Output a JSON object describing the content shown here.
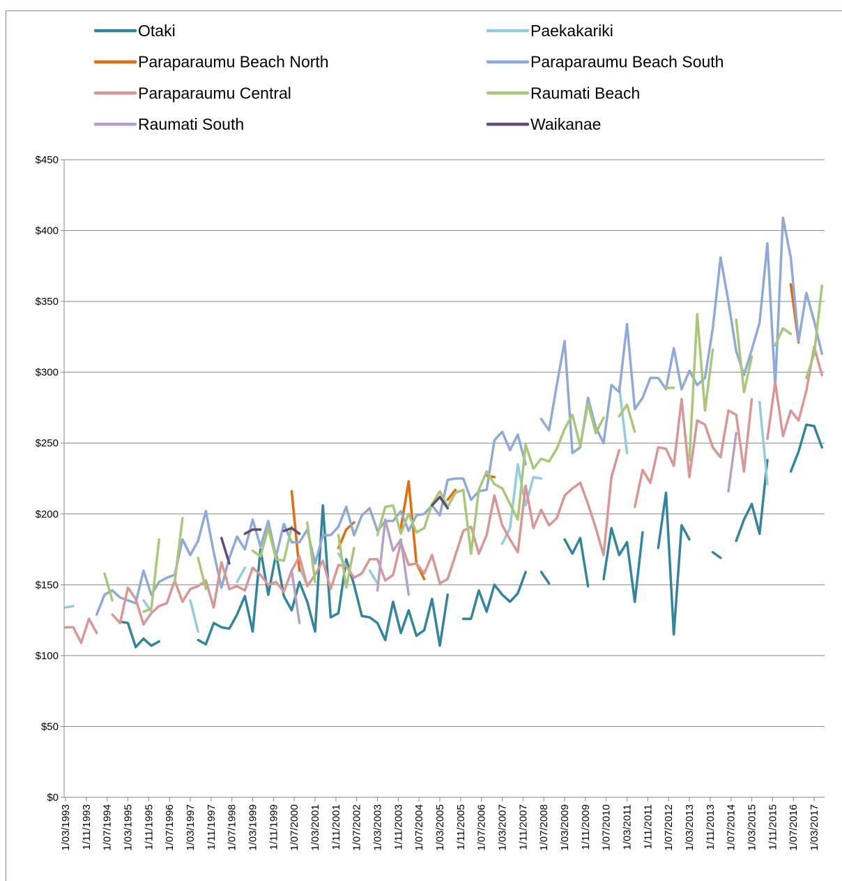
{
  "chart_data": {
    "type": "line",
    "x": [
      "1/03/1993",
      "1/06/1993",
      "1/09/1993",
      "1/12/1993",
      "1/03/1994",
      "1/06/1994",
      "1/09/1994",
      "1/12/1994",
      "1/03/1995",
      "1/06/1995",
      "1/09/1995",
      "1/12/1995",
      "1/03/1996",
      "1/06/1996",
      "1/09/1996",
      "1/12/1996",
      "1/03/1997",
      "1/06/1997",
      "1/09/1997",
      "1/12/1997",
      "1/03/1998",
      "1/06/1998",
      "1/09/1998",
      "1/12/1998",
      "1/03/1999",
      "1/06/1999",
      "1/09/1999",
      "1/12/1999",
      "1/03/2000",
      "1/06/2000",
      "1/09/2000",
      "1/12/2000",
      "1/03/2001",
      "1/06/2001",
      "1/09/2001",
      "1/12/2001",
      "1/03/2002",
      "1/06/2002",
      "1/09/2002",
      "1/12/2002",
      "1/03/2003",
      "1/06/2003",
      "1/09/2003",
      "1/12/2003",
      "1/03/2004",
      "1/06/2004",
      "1/09/2004",
      "1/12/2004",
      "1/03/2005",
      "1/06/2005",
      "1/09/2005",
      "1/12/2005",
      "1/03/2006",
      "1/06/2006",
      "1/09/2006",
      "1/12/2006",
      "1/03/2007",
      "1/06/2007",
      "1/09/2007",
      "1/12/2007",
      "1/03/2008",
      "1/06/2008",
      "1/09/2008",
      "1/12/2008",
      "1/03/2009",
      "1/06/2009",
      "1/09/2009",
      "1/12/2009",
      "1/03/2010",
      "1/06/2010",
      "1/09/2010",
      "1/12/2010",
      "1/03/2011",
      "1/06/2011",
      "1/09/2011",
      "1/12/2011",
      "1/03/2012",
      "1/06/2012",
      "1/09/2012",
      "1/12/2012",
      "1/03/2013",
      "1/06/2013",
      "1/09/2013",
      "1/12/2013",
      "1/03/2014",
      "1/06/2014",
      "1/09/2014",
      "1/12/2014",
      "1/03/2015",
      "1/06/2015",
      "1/09/2015",
      "1/12/2015",
      "1/03/2016",
      "1/06/2016",
      "1/09/2016",
      "1/12/2016",
      "1/03/2017",
      "1/06/2017"
    ],
    "xlim": [
      "1/03/1993",
      "1/07/2017"
    ],
    "xticks": [
      "1/03/1993",
      "1/11/1993",
      "1/07/1994",
      "1/03/1995",
      "1/11/1995",
      "1/07/1996",
      "1/03/1997",
      "1/11/1997",
      "1/07/1998",
      "1/03/1999",
      "1/11/1999",
      "1/07/2000",
      "1/03/2001",
      "1/11/2001",
      "1/07/2002",
      "1/03/2003",
      "1/11/2003",
      "1/07/2004",
      "1/03/2005",
      "1/11/2005",
      "1/07/2006",
      "1/03/2007",
      "1/11/2007",
      "1/07/2008",
      "1/03/2009",
      "1/11/2009",
      "1/07/2010",
      "1/03/2011",
      "1/11/2011",
      "1/07/2012",
      "1/03/2013",
      "1/11/2013",
      "1/07/2014",
      "1/03/2015",
      "1/11/2015",
      "1/07/2016",
      "1/03/2017"
    ],
    "ylim": [
      0,
      450
    ],
    "yticks": [
      {
        "value": 0,
        "label": "$0"
      },
      {
        "value": 50,
        "label": "$50"
      },
      {
        "value": 100,
        "label": "$100"
      },
      {
        "value": 150,
        "label": "$150"
      },
      {
        "value": 200,
        "label": "$200"
      },
      {
        "value": 250,
        "label": "$250"
      },
      {
        "value": 300,
        "label": "$300"
      },
      {
        "value": 350,
        "label": "$350"
      },
      {
        "value": 400,
        "label": "$400"
      },
      {
        "value": 450,
        "label": "$450"
      }
    ],
    "grid": true,
    "series": [
      {
        "name": "Otaki",
        "color": "#31859c",
        "values": [
          null,
          null,
          null,
          null,
          null,
          null,
          null,
          124,
          123,
          106,
          112,
          107,
          110,
          null,
          null,
          null,
          null,
          111,
          108,
          123,
          120,
          119,
          129,
          142,
          117,
          175,
          143,
          172,
          142,
          132,
          152,
          138,
          117,
          206,
          127,
          130,
          168,
          150,
          128,
          127,
          123,
          111,
          138,
          116,
          132,
          114,
          118,
          140,
          107,
          143,
          null,
          126,
          126,
          146,
          131,
          150,
          143,
          138,
          144,
          159,
          null,
          159,
          151,
          null,
          182,
          172,
          183,
          149,
          null,
          154,
          190,
          171,
          180,
          138,
          187,
          null,
          176,
          215,
          115,
          192,
          182,
          null,
          null,
          173,
          169,
          null,
          181,
          196,
          207,
          186,
          238,
          null,
          null,
          230,
          244,
          263,
          262,
          247
        ]
      },
      {
        "name": "Paekakariki",
        "color": "#93cddd",
        "values": [
          134,
          135,
          null,
          null,
          null,
          null,
          null,
          null,
          null,
          null,
          139,
          131,
          null,
          null,
          null,
          null,
          139,
          117,
          null,
          null,
          null,
          null,
          152,
          162,
          null,
          null,
          null,
          null,
          null,
          null,
          162,
          150,
          null,
          null,
          null,
          172,
          163,
          null,
          null,
          160,
          151,
          null,
          null,
          null,
          null,
          null,
          null,
          null,
          null,
          null,
          null,
          null,
          null,
          null,
          null,
          null,
          179,
          190,
          235,
          206,
          226,
          225,
          null,
          null,
          null,
          null,
          null,
          null,
          null,
          null,
          null,
          290,
          243,
          null,
          null,
          null,
          null,
          null,
          null,
          null,
          null,
          null,
          null,
          null,
          null,
          null,
          null,
          null,
          null,
          279,
          221,
          null,
          null,
          null,
          null,
          null,
          null,
          null
        ]
      },
      {
        "name": "Paraparaumu Beach North",
        "color": "#e46c0a",
        "values": [
          null,
          null,
          null,
          null,
          null,
          null,
          null,
          null,
          null,
          null,
          null,
          null,
          null,
          null,
          null,
          null,
          null,
          null,
          null,
          null,
          null,
          null,
          null,
          null,
          null,
          null,
          null,
          null,
          null,
          216,
          160,
          null,
          null,
          null,
          null,
          176,
          189,
          194,
          null,
          null,
          null,
          null,
          null,
          190,
          223,
          165,
          154,
          null,
          null,
          210,
          217,
          null,
          null,
          null,
          227,
          226,
          null,
          null,
          null,
          null,
          null,
          null,
          null,
          null,
          null,
          null,
          null,
          null,
          null,
          null,
          null,
          null,
          null,
          null,
          null,
          null,
          null,
          null,
          null,
          null,
          null,
          null,
          null,
          null,
          null,
          null,
          null,
          null,
          null,
          null,
          null,
          null,
          null,
          362,
          321,
          null,
          null,
          null
        ]
      },
      {
        "name": "Paraparaumu Beach South",
        "color": "#8eaad8",
        "values": [
          null,
          null,
          null,
          null,
          129,
          143,
          146,
          141,
          139,
          137,
          160,
          143,
          152,
          155,
          157,
          182,
          171,
          181,
          202,
          173,
          148,
          169,
          184,
          175,
          196,
          177,
          195,
          170,
          193,
          180,
          180,
          189,
          165,
          185,
          185,
          191,
          205,
          185,
          199,
          204,
          188,
          195,
          195,
          202,
          188,
          199,
          200,
          206,
          199,
          224,
          225,
          225,
          210,
          216,
          217,
          252,
          258,
          245,
          256,
          235,
          null,
          267,
          259,
          291,
          322,
          243,
          247,
          282,
          261,
          250,
          291,
          286,
          334,
          274,
          282,
          296,
          296,
          288,
          317,
          288,
          301,
          291,
          296,
          331,
          381,
          350,
          315,
          298,
          316,
          335,
          391,
          290,
          409,
          381,
          322,
          356,
          336,
          313
        ]
      },
      {
        "name": "Paraparaumu Central",
        "color": "#d99694",
        "values": [
          120,
          120,
          109,
          126,
          116,
          null,
          129,
          123,
          148,
          140,
          122,
          130,
          135,
          137,
          153,
          138,
          147,
          149,
          153,
          134,
          166,
          147,
          149,
          146,
          162,
          157,
          150,
          152,
          145,
          160,
          170,
          149,
          157,
          167,
          147,
          164,
          163,
          155,
          158,
          168,
          168,
          153,
          157,
          180,
          164,
          165,
          158,
          171,
          151,
          154,
          171,
          188,
          191,
          172,
          185,
          213,
          192,
          182,
          173,
          220,
          190,
          203,
          192,
          197,
          213,
          218,
          222,
          207,
          190,
          171,
          226,
          245,
          null,
          205,
          231,
          222,
          247,
          246,
          234,
          281,
          226,
          266,
          263,
          247,
          240,
          273,
          270,
          230,
          281,
          null,
          253,
          293,
          255,
          273,
          266,
          287,
          318,
          298
        ]
      },
      {
        "name": "Raumati Beach",
        "color": "#a8c878",
        "values": [
          null,
          null,
          null,
          null,
          null,
          158,
          139,
          null,
          null,
          null,
          131,
          133,
          182,
          null,
          152,
          197,
          null,
          169,
          147,
          null,
          null,
          null,
          null,
          null,
          174,
          170,
          190,
          168,
          167,
          191,
          null,
          194,
          152,
          null,
          null,
          185,
          148,
          176,
          null,
          null,
          185,
          205,
          206,
          186,
          200,
          187,
          190,
          207,
          216,
          205,
          215,
          217,
          172,
          217,
          230,
          221,
          218,
          207,
          196,
          249,
          232,
          239,
          237,
          246,
          260,
          270,
          248,
          278,
          257,
          268,
          null,
          269,
          277,
          258,
          null,
          null,
          null,
          289,
          289,
          null,
          238,
          341,
          273,
          316,
          null,
          null,
          337,
          286,
          311,
          null,
          null,
          319,
          331,
          327,
          null,
          296,
          313,
          361
        ]
      },
      {
        "name": "Raumati South",
        "color": "#b3a2c7",
        "values": [
          null,
          null,
          null,
          null,
          null,
          null,
          null,
          null,
          null,
          null,
          null,
          null,
          null,
          null,
          null,
          null,
          null,
          null,
          null,
          null,
          null,
          null,
          null,
          null,
          null,
          null,
          null,
          null,
          null,
          160,
          123,
          null,
          null,
          null,
          null,
          null,
          null,
          null,
          null,
          null,
          146,
          196,
          174,
          182,
          143,
          null,
          null,
          null,
          null,
          null,
          null,
          null,
          null,
          null,
          null,
          null,
          null,
          null,
          null,
          null,
          null,
          null,
          null,
          null,
          null,
          null,
          null,
          null,
          null,
          null,
          null,
          null,
          null,
          null,
          null,
          null,
          null,
          null,
          null,
          null,
          null,
          null,
          null,
          null,
          null,
          216,
          257,
          null,
          null,
          null,
          null,
          null,
          null,
          null,
          null,
          null,
          null,
          null
        ]
      },
      {
        "name": "Waikanae",
        "color": "#604a7b",
        "values": [
          null,
          null,
          null,
          null,
          null,
          null,
          null,
          null,
          null,
          null,
          null,
          null,
          null,
          null,
          null,
          null,
          null,
          null,
          null,
          null,
          183,
          165,
          null,
          186,
          189,
          189,
          null,
          null,
          188,
          190,
          186,
          null,
          null,
          null,
          null,
          null,
          null,
          null,
          null,
          null,
          null,
          null,
          null,
          null,
          null,
          null,
          null,
          206,
          212,
          204,
          null,
          null,
          null,
          null,
          null,
          null,
          null,
          null,
          null,
          null,
          null,
          null,
          null,
          null,
          null,
          null,
          null,
          null,
          null,
          null,
          null,
          null,
          null,
          null,
          null,
          null,
          null,
          null,
          null,
          null,
          null,
          null,
          null,
          null,
          null,
          null,
          null,
          null,
          null,
          null,
          null,
          null,
          null,
          null,
          null,
          null,
          null,
          null
        ]
      }
    ]
  }
}
